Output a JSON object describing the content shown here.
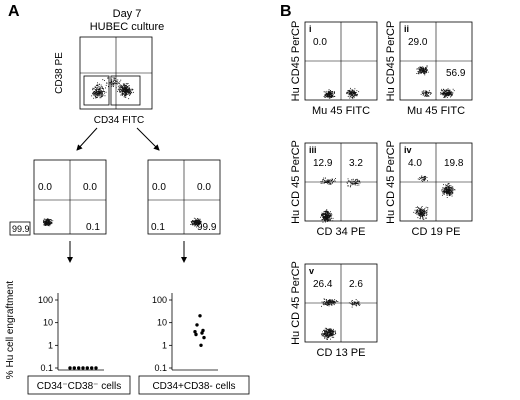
{
  "panel_a": {
    "label": "A",
    "title_line1": "Day 7",
    "title_line2": "HUBEC culture",
    "top_plot": {
      "ylabel": "CD38 PE",
      "xlabel": "CD34 FITC"
    },
    "left_plot": {
      "q_ul": "0.0",
      "q_ur": "0.0",
      "q_ll": "99.9",
      "q_lr": "0.1"
    },
    "right_plot": {
      "q_ul": "0.0",
      "q_ur": "0.0",
      "q_ll": "0.1",
      "q_lr": "99.9"
    },
    "engraftment_ylabel": "% Hu cell engraftment",
    "y_ticks": [
      "100",
      "10",
      "1",
      "0.1"
    ],
    "left_caption": "CD34⁻CD38⁻ cells",
    "right_caption": "CD34+CD38- cells"
  },
  "panel_b": {
    "label": "B",
    "plots": [
      {
        "roman": "i",
        "ylabel": "Hu CD45 PerCP",
        "xlabel": "Mu 45 FITC",
        "q_ul": "0.0",
        "q_ur": "",
        "q_lr": ""
      },
      {
        "roman": "ii",
        "ylabel": "Hu CD45 PerCP",
        "xlabel": "Mu 45 FITC",
        "q_ul": "29.0",
        "q_ur": "",
        "q_lr": "56.9"
      },
      {
        "roman": "iii",
        "ylabel": "Hu CD 45 PerCP",
        "xlabel": "CD 34 PE",
        "q_ul": "12.9",
        "q_ur": "3.2",
        "q_lr": ""
      },
      {
        "roman": "iv",
        "ylabel": "Hu CD 45 PerCP",
        "xlabel": "CD 19 PE",
        "q_ul": "4.0",
        "q_ur": "19.8",
        "q_lr": ""
      },
      {
        "roman": "v",
        "ylabel": "Hu CD 45 PerCP",
        "xlabel": "CD 13 PE",
        "q_ul": "26.4",
        "q_ur": "2.6",
        "q_lr": ""
      }
    ]
  },
  "chart_data": [
    {
      "type": "scatter",
      "title": "",
      "xlabel": "CD34⁻CD38⁻ cells",
      "ylabel": "% Hu cell engraftment",
      "yscale": "log",
      "ylim": [
        0.1,
        100
      ],
      "values": [
        0.1,
        0.1,
        0.1,
        0.1,
        0.1,
        0.1,
        0.1
      ]
    },
    {
      "type": "scatter",
      "title": "",
      "xlabel": "CD34+CD38- cells",
      "ylabel": "",
      "yscale": "log",
      "ylim": [
        0.1,
        100
      ],
      "values": [
        20,
        8,
        4.5,
        4,
        3.5,
        3,
        2.2,
        1
      ]
    }
  ]
}
